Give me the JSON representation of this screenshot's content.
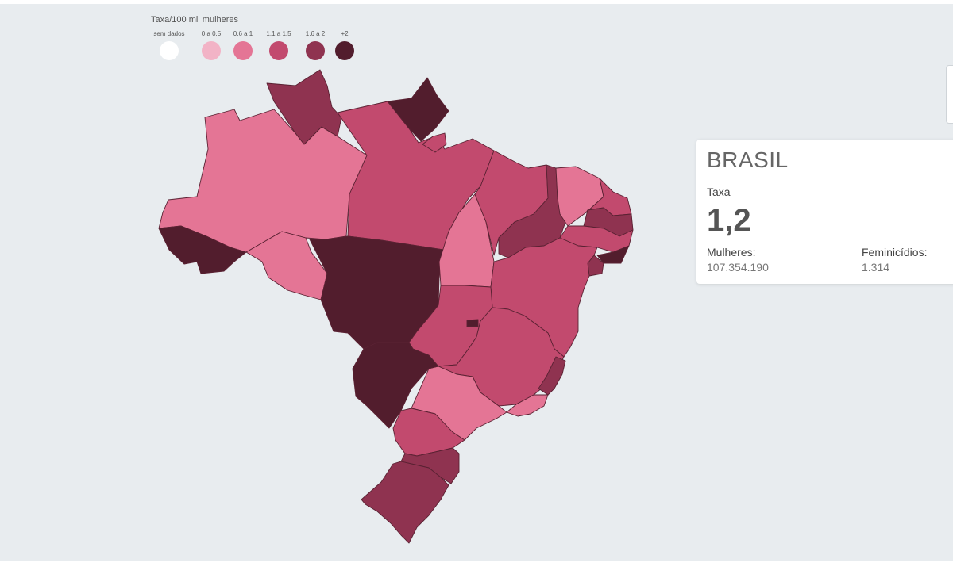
{
  "legend": {
    "title": "Taxa/100 mil mulheres",
    "items": [
      {
        "label": "sem dados",
        "color": "#ffffff"
      },
      {
        "label": "0 a 0,5",
        "color": "#f2b3c6"
      },
      {
        "label": "0,6 a 1",
        "color": "#e47595"
      },
      {
        "label": "1,1 a 1,5",
        "color": "#c24a6e"
      },
      {
        "label": "1,6 a 2",
        "color": "#8f3350"
      },
      {
        "label": "+2",
        "color": "#521d2d"
      }
    ]
  },
  "map": {
    "colors": {
      "c1": "#f2b3c6",
      "c2": "#e47595",
      "c3": "#c24a6e",
      "c4": "#8f3350",
      "c5": "#521d2d"
    }
  },
  "card": {
    "title": "BRASIL",
    "rate_label": "Taxa",
    "rate_value": "1,2",
    "women_label": "Mulheres:",
    "women_value": "107.354.190",
    "femicides_label": "Feminicídios:",
    "femicides_value": "1.314"
  }
}
